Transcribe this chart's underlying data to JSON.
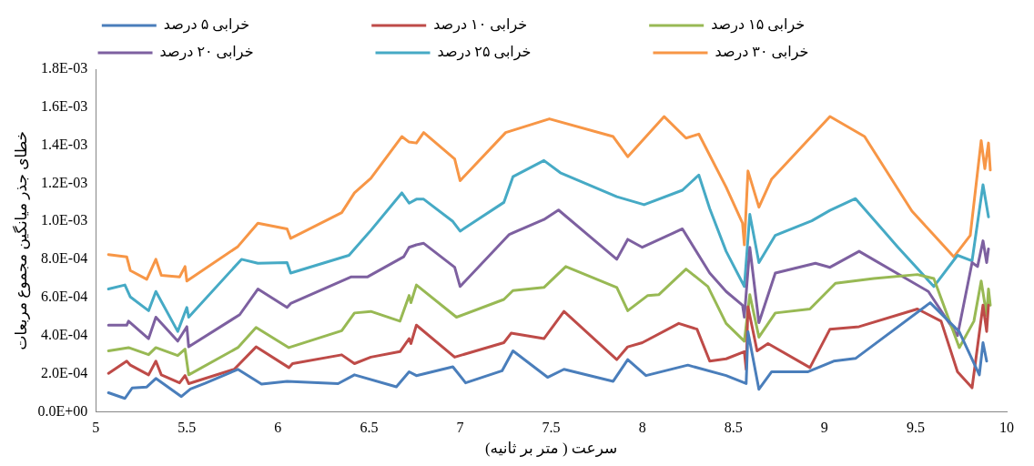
{
  "chart_data": {
    "type": "line",
    "xlabel": "سرعت ( متر بر ثانیه)",
    "ylabel": "خطای جذر میانگین مجموع مربعات",
    "legend": "top",
    "marker": "none",
    "grid": false,
    "xlim": [
      5,
      10
    ],
    "xticks": [
      5,
      5.5,
      6,
      6.5,
      7,
      7.5,
      8,
      8.5,
      9,
      9.5,
      10
    ],
    "ylim": [
      0,
      0.0018
    ],
    "yticks": [
      {
        "value": 0,
        "label": "0.0E+00"
      },
      {
        "value": 0.0002,
        "label": "2.0E-04"
      },
      {
        "value": 0.0004,
        "label": "4.0E-04"
      },
      {
        "value": 0.0006,
        "label": "6.0E-04"
      },
      {
        "value": 0.0008,
        "label": "8.0E-04"
      },
      {
        "value": 0.001,
        "label": "1.0E-03"
      },
      {
        "value": 0.0012,
        "label": "1.2E-03"
      },
      {
        "value": 0.0014,
        "label": "1.4E-03"
      },
      {
        "value": 0.0016,
        "label": "1.6E-03"
      },
      {
        "value": 0.0018,
        "label": "1.8E-03"
      }
    ],
    "series": [
      {
        "name": "خرابی ۵ درصد",
        "color": "#4a7ebb",
        "x": [
          5.07,
          5.16,
          5.2,
          5.28,
          5.33,
          5.47,
          5.52,
          5.6,
          5.78,
          5.91,
          6.05,
          6.33,
          6.42,
          6.65,
          6.72,
          6.76,
          6.96,
          7.03,
          7.23,
          7.29,
          7.48,
          7.57,
          7.84,
          7.92,
          8.02,
          8.25,
          8.46,
          8.57,
          8.58,
          8.64,
          8.71,
          8.91,
          9.05,
          9.17,
          9.58,
          9.74,
          9.85,
          9.87,
          9.89
        ],
        "values": [
          0.0001,
          7e-05,
          0.000125,
          0.00013,
          0.000175,
          8e-05,
          0.00012,
          0.00015,
          0.000223,
          0.000145,
          0.00016,
          0.000148,
          0.000194,
          0.000131,
          0.00021,
          0.00019,
          0.000236,
          0.000152,
          0.000215,
          0.00032,
          0.000181,
          0.000223,
          0.00016,
          0.000274,
          0.00019,
          0.000245,
          0.00019,
          0.000148,
          0.00042,
          0.000118,
          0.00021,
          0.00021,
          0.000266,
          0.00028,
          0.000573,
          0.00042,
          0.000194,
          0.000363,
          0.000266
        ]
      },
      {
        "name": "خرابی ۱۰ درصد",
        "color": "#be4b48",
        "x": [
          5.07,
          5.17,
          5.19,
          5.29,
          5.33,
          5.36,
          5.46,
          5.49,
          5.51,
          5.76,
          5.88,
          6.06,
          6.08,
          6.35,
          6.42,
          6.51,
          6.67,
          6.72,
          6.73,
          6.76,
          6.97,
          7.24,
          7.28,
          7.46,
          7.57,
          7.86,
          7.92,
          8.0,
          8.2,
          8.3,
          8.37,
          8.46,
          8.56,
          8.57,
          8.58,
          8.63,
          8.69,
          8.92,
          9.03,
          9.19,
          9.51,
          9.64,
          9.73,
          9.81,
          9.87,
          9.89,
          9.9
        ],
        "values": [
          0.000202,
          0.000266,
          0.000245,
          0.000194,
          0.000266,
          0.000194,
          0.000152,
          0.00019,
          0.000148,
          0.000223,
          0.000341,
          0.000232,
          0.000253,
          0.000299,
          0.000253,
          0.000287,
          0.000316,
          0.000384,
          0.000358,
          0.000455,
          0.000287,
          0.000363,
          0.000413,
          0.000384,
          0.000527,
          0.000274,
          0.000341,
          0.000363,
          0.000464,
          0.000434,
          0.000266,
          0.000278,
          0.000316,
          0.000223,
          0.000552,
          0.00032,
          0.000358,
          0.000232,
          0.000434,
          0.000447,
          0.00054,
          0.000476,
          0.00021,
          0.000126,
          0.00056,
          0.000422,
          0.00056
        ]
      },
      {
        "name": "خرابی ۱۵ درصد",
        "color": "#98b954",
        "x": [
          5.07,
          5.18,
          5.29,
          5.33,
          5.45,
          5.49,
          5.51,
          5.78,
          5.88,
          6.06,
          6.35,
          6.42,
          6.51,
          6.67,
          6.72,
          6.73,
          6.76,
          6.98,
          7.24,
          7.29,
          7.46,
          7.58,
          7.86,
          7.92,
          8.03,
          8.09,
          8.24,
          8.36,
          8.46,
          8.56,
          8.59,
          8.64,
          8.73,
          8.92,
          9.06,
          9.27,
          9.51,
          9.6,
          9.74,
          9.82,
          9.86,
          9.89,
          9.9,
          9.91
        ],
        "values": [
          0.00032,
          0.000337,
          0.0003,
          0.000337,
          0.000295,
          0.000329,
          0.000194,
          0.000337,
          0.000443,
          0.000337,
          0.000426,
          0.000519,
          0.000527,
          0.000476,
          0.000611,
          0.000573,
          0.000666,
          0.000497,
          0.00059,
          0.000637,
          0.000653,
          0.000763,
          0.000653,
          0.000531,
          0.000611,
          0.000615,
          0.00075,
          0.000658,
          0.000464,
          0.000371,
          0.000615,
          0.000392,
          0.000519,
          0.00054,
          0.000675,
          0.0007,
          0.000721,
          0.0007,
          0.000337,
          0.000476,
          0.000687,
          0.000506,
          0.000645,
          0.00056
        ]
      },
      {
        "name": "خرابی ۲۰ درصد",
        "color": "#7d60a0",
        "x": [
          5.07,
          5.17,
          5.18,
          5.29,
          5.33,
          5.45,
          5.5,
          5.51,
          5.79,
          5.89,
          6.05,
          6.07,
          6.4,
          6.49,
          6.69,
          6.72,
          6.76,
          6.8,
          6.97,
          7.0,
          7.27,
          7.46,
          7.54,
          7.86,
          7.92,
          8.0,
          8.22,
          8.37,
          8.46,
          8.55,
          8.56,
          8.59,
          8.64,
          8.73,
          8.95,
          9.03,
          9.19,
          9.57,
          9.73,
          9.81,
          9.84,
          9.87,
          9.89,
          9.9
        ],
        "values": [
          0.000455,
          0.000455,
          0.000476,
          0.000384,
          0.000497,
          0.000371,
          0.000447,
          0.000341,
          0.00051,
          0.000645,
          0.000548,
          0.000569,
          0.000708,
          0.000708,
          0.000814,
          0.000864,
          0.000877,
          0.000885,
          0.000759,
          0.000658,
          0.000932,
          0.00101,
          0.00106,
          0.000801,
          0.000906,
          0.000864,
          0.000961,
          0.000729,
          0.000632,
          0.00056,
          0.000497,
          0.000864,
          0.000468,
          0.000729,
          0.00078,
          0.000759,
          0.000843,
          0.000632,
          0.0004,
          0.000784,
          0.000763,
          0.000898,
          0.000784,
          0.000856
        ]
      },
      {
        "name": "خرابی ۲۵ درصد",
        "color": "#46aac5",
        "x": [
          5.07,
          5.16,
          5.19,
          5.29,
          5.33,
          5.45,
          5.5,
          5.51,
          5.8,
          5.89,
          6.05,
          6.07,
          6.39,
          6.51,
          6.68,
          6.72,
          6.76,
          6.8,
          6.96,
          7.0,
          7.24,
          7.29,
          7.46,
          7.55,
          7.86,
          8.01,
          8.22,
          8.31,
          8.37,
          8.46,
          8.56,
          8.59,
          8.64,
          8.73,
          8.93,
          9.03,
          9.17,
          9.4,
          9.6,
          9.73,
          9.81,
          9.87,
          9.9
        ],
        "values": [
          0.000645,
          0.000666,
          0.000603,
          0.000531,
          0.000632,
          0.000422,
          0.000548,
          0.000497,
          0.000801,
          0.00078,
          0.000784,
          0.000729,
          0.000822,
          0.000953,
          0.00115,
          0.001096,
          0.001117,
          0.001117,
          0.001,
          0.000949,
          0.0011,
          0.001235,
          0.00132,
          0.001256,
          0.00113,
          0.001088,
          0.001164,
          0.001244,
          0.001067,
          0.000843,
          0.000658,
          0.001037,
          0.000784,
          0.000927,
          0.001003,
          0.001058,
          0.00112,
          0.000868,
          0.000658,
          0.000822,
          0.000793,
          0.001193,
          0.001024
        ]
      },
      {
        "name": "خرابی ۳۰ درصد",
        "color": "#f79646",
        "x": [
          5.07,
          5.17,
          5.19,
          5.28,
          5.33,
          5.36,
          5.46,
          5.49,
          5.5,
          5.78,
          5.89,
          6.05,
          6.07,
          6.35,
          6.42,
          6.51,
          6.68,
          6.72,
          6.76,
          6.8,
          6.97,
          7.0,
          7.25,
          7.49,
          7.84,
          7.92,
          8.12,
          8.24,
          8.31,
          8.46,
          8.55,
          8.56,
          8.58,
          8.64,
          8.71,
          9.03,
          9.22,
          9.48,
          9.71,
          9.8,
          9.86,
          9.88,
          9.9,
          9.91
        ],
        "values": [
          0.000826,
          0.000814,
          0.000742,
          0.000696,
          0.000801,
          0.000717,
          0.000708,
          0.000763,
          0.000687,
          0.000868,
          0.000991,
          0.000961,
          0.000911,
          0.001046,
          0.00115,
          0.001227,
          0.001446,
          0.001417,
          0.001412,
          0.001467,
          0.001328,
          0.001214,
          0.001467,
          0.001539,
          0.001446,
          0.00134,
          0.001551,
          0.001438,
          0.001459,
          0.00118,
          0.000991,
          0.000877,
          0.001265,
          0.001075,
          0.001223,
          0.001551,
          0.001446,
          0.001054,
          0.000814,
          0.000927,
          0.001425,
          0.001277,
          0.001412,
          0.00127
        ]
      }
    ]
  }
}
